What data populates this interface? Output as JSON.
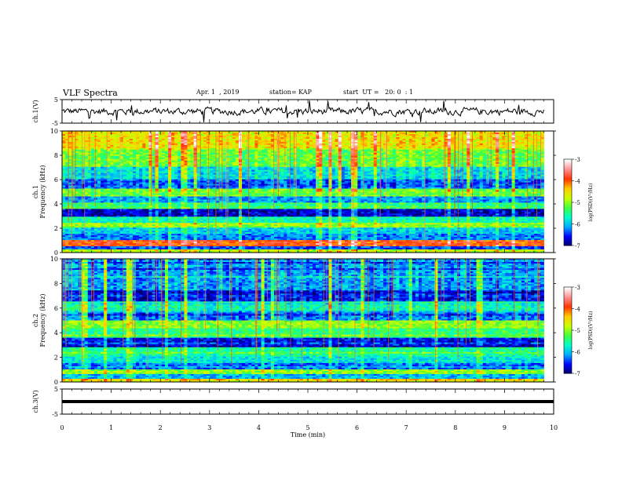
{
  "header": {
    "title": "VLF Spectra",
    "date": "Apr. 1  , 2019",
    "station": "station= KAP",
    "start": "start  UT =   20: 0  : 1"
  },
  "colors": {
    "ink": "#000000",
    "colormap": [
      "#000060",
      "#0000ff",
      "#00aaff",
      "#00ffcc",
      "#40ff40",
      "#ccff00",
      "#ffcc00",
      "#ff3300",
      "#ff9090",
      "#ffffff"
    ]
  },
  "chart_data": [
    {
      "type": "line",
      "id": "ch1",
      "ylabel": "ch.1(V)",
      "ylim": [
        -5,
        5
      ],
      "yticks": [
        "5",
        "-5"
      ],
      "xlim": [
        0,
        10
      ],
      "approx_mean": 0,
      "approx_amplitude": 2
    },
    {
      "type": "heatmap",
      "id": "spec1",
      "ylabel": "ch.1\nFrequency (kHz)",
      "ylim": [
        0,
        10
      ],
      "yticks": [
        "0",
        "2",
        "4",
        "6",
        "8",
        "10"
      ],
      "xlim": [
        0,
        10
      ],
      "data_end_min": 9.8,
      "colorbar": {
        "label": "log(PSD)(V²/Hz)",
        "range": [
          -7,
          -3
        ],
        "ticks": [
          "-3",
          "-4",
          "-5",
          "-6",
          "-7"
        ]
      },
      "bands": [
        {
          "f": [
            0.0,
            0.3
          ],
          "v": -4.8
        },
        {
          "f": [
            0.3,
            0.5
          ],
          "v": -6.4
        },
        {
          "f": [
            0.5,
            1.0
          ],
          "v": -3.9
        },
        {
          "f": [
            1.0,
            1.5
          ],
          "v": -6.2
        },
        {
          "f": [
            1.5,
            2.1
          ],
          "v": -5.9
        },
        {
          "f": [
            2.1,
            2.5
          ],
          "v": -5.0
        },
        {
          "f": [
            2.5,
            2.9
          ],
          "v": -5.6
        },
        {
          "f": [
            2.9,
            3.6
          ],
          "v": -6.7
        },
        {
          "f": [
            3.6,
            4.1
          ],
          "v": -5.3
        },
        {
          "f": [
            4.1,
            4.6
          ],
          "v": -6.1
        },
        {
          "f": [
            4.6,
            5.2
          ],
          "v": -5.1
        },
        {
          "f": [
            5.2,
            6.0
          ],
          "v": -6.3
        },
        {
          "f": [
            6.0,
            7.0
          ],
          "v": -5.8
        },
        {
          "f": [
            7.0,
            8.5
          ],
          "v": -5.1
        },
        {
          "f": [
            8.5,
            10.0
          ],
          "v": -4.5
        }
      ]
    },
    {
      "type": "heatmap",
      "id": "spec2",
      "ylabel": "ch.2\nFrequency (kHz)",
      "ylim": [
        0,
        10
      ],
      "yticks": [
        "0",
        "2",
        "4",
        "6",
        "8",
        "10"
      ],
      "xlim": [
        0,
        10
      ],
      "data_end_min": 9.8,
      "colorbar": {
        "label": "log(PSD)(V²/Hz)",
        "range": [
          -7,
          -3
        ],
        "ticks": [
          "-3",
          "-4",
          "-5",
          "-6",
          "-7"
        ]
      },
      "bands": [
        {
          "f": [
            0.0,
            0.3
          ],
          "v": -4.4
        },
        {
          "f": [
            0.3,
            0.6
          ],
          "v": -6.0
        },
        {
          "f": [
            0.6,
            1.0
          ],
          "v": -5.0
        },
        {
          "f": [
            1.0,
            1.6
          ],
          "v": -6.3
        },
        {
          "f": [
            1.6,
            2.1
          ],
          "v": -5.8
        },
        {
          "f": [
            2.1,
            2.8
          ],
          "v": -5.5
        },
        {
          "f": [
            2.8,
            3.6
          ],
          "v": -6.6
        },
        {
          "f": [
            3.6,
            4.4
          ],
          "v": -5.4
        },
        {
          "f": [
            4.4,
            5.0
          ],
          "v": -5.0
        },
        {
          "f": [
            5.0,
            5.8
          ],
          "v": -6.2
        },
        {
          "f": [
            5.8,
            6.5
          ],
          "v": -5.6
        },
        {
          "f": [
            6.5,
            7.5
          ],
          "v": -6.5
        },
        {
          "f": [
            7.5,
            10.0
          ],
          "v": -6.1
        }
      ]
    },
    {
      "type": "line",
      "id": "ch3",
      "ylabel": "ch.3(V)",
      "ylim": [
        -5,
        5
      ],
      "yticks": [
        "5",
        "-5"
      ],
      "xlim": [
        0,
        10
      ],
      "approx_mean": 0
    }
  ],
  "xaxis": {
    "label": "Time  (min)",
    "ticks": [
      "0",
      "1",
      "2",
      "3",
      "4",
      "5",
      "6",
      "7",
      "8",
      "9",
      "10"
    ]
  }
}
